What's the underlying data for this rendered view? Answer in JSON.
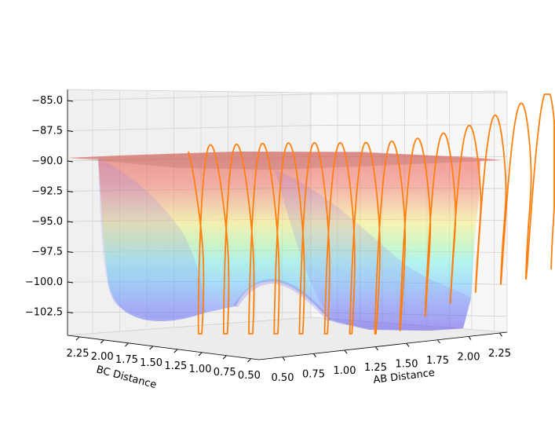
{
  "chart_data": {
    "type": "surface3d",
    "title": "",
    "xlabel": "AB Distance",
    "ylabel": "BC Distance",
    "zlabel": "",
    "x_ticks": [
      "0.50",
      "0.75",
      "1.00",
      "1.25",
      "1.50",
      "1.75",
      "2.00",
      "2.25"
    ],
    "y_ticks": [
      "0.50",
      "0.75",
      "1.00",
      "1.25",
      "1.50",
      "1.75",
      "2.00",
      "2.25"
    ],
    "z_ticks": [
      "−85.0",
      "−87.5",
      "−90.0",
      "−92.5",
      "−95.0",
      "−97.5",
      "−100.0",
      "−102.5"
    ],
    "xlim": [
      0.4,
      2.4
    ],
    "ylim": [
      0.4,
      2.4
    ],
    "zlim": [
      -104,
      -84
    ],
    "surface": {
      "colormap": "jet",
      "alpha": 0.5,
      "clip_z": -90.0,
      "min_z": -103.7,
      "saddle_z": -100.5
    },
    "trajectory": {
      "color": "#ff7f0e",
      "series": "orange oscillating trajectory line"
    },
    "grid": true
  },
  "colors": {
    "pane": "#f2f2f2",
    "pane_side": "#ebebeb",
    "grid": "#c8c8c8",
    "trajectory": "#ff7f0e"
  }
}
